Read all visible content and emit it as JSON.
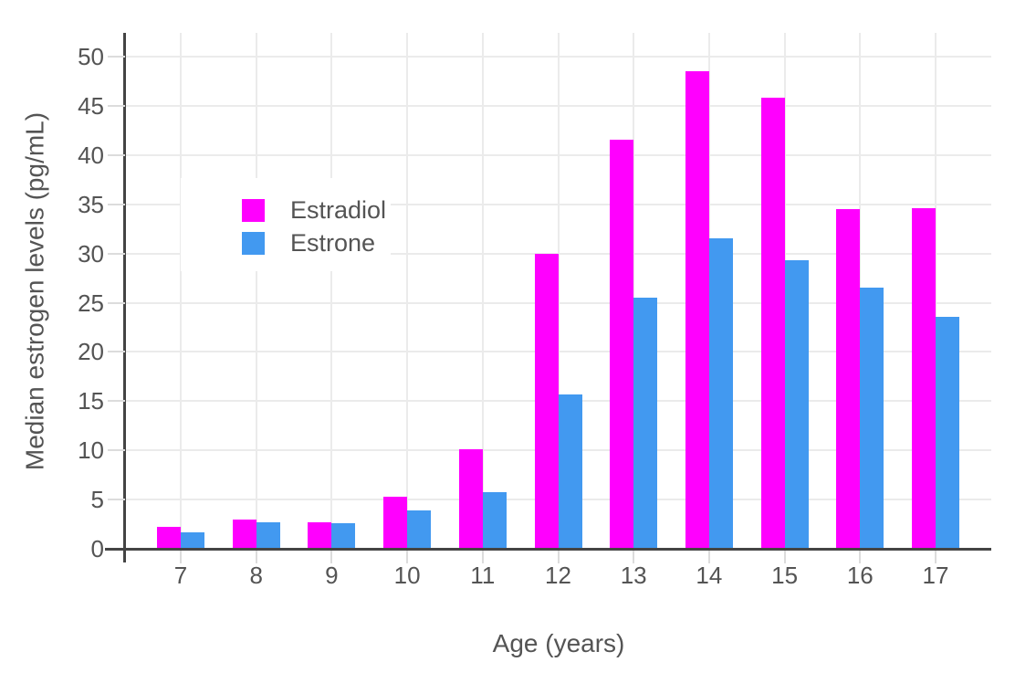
{
  "chart_data": {
    "type": "bar",
    "title": "",
    "xlabel": "Age (years)",
    "ylabel": "Median estrogen levels (pg/mL)",
    "categories": [
      "7",
      "8",
      "9",
      "10",
      "11",
      "12",
      "13",
      "14",
      "15",
      "16",
      "17"
    ],
    "series": [
      {
        "name": "Estradiol",
        "color": "#FF00FE",
        "values": [
          2.2,
          3.0,
          2.7,
          5.3,
          10.1,
          30.0,
          41.6,
          48.5,
          45.8,
          34.5,
          34.6
        ]
      },
      {
        "name": "Estrone",
        "color": "#4299F0",
        "values": [
          1.7,
          2.7,
          2.6,
          3.9,
          5.8,
          15.7,
          25.5,
          31.5,
          29.3,
          26.5,
          23.6
        ]
      }
    ],
    "ylim": [
      0,
      52
    ],
    "yticks": [
      0,
      5,
      10,
      15,
      20,
      25,
      30,
      35,
      40,
      45,
      50
    ],
    "grid": true,
    "legend_position": "inside-top-left",
    "colors": {
      "background": "#FFFFFF",
      "grid": "#EBEBEB",
      "tick": "#DCDCDC",
      "axis_line": "#444444",
      "text": "#545454"
    }
  }
}
